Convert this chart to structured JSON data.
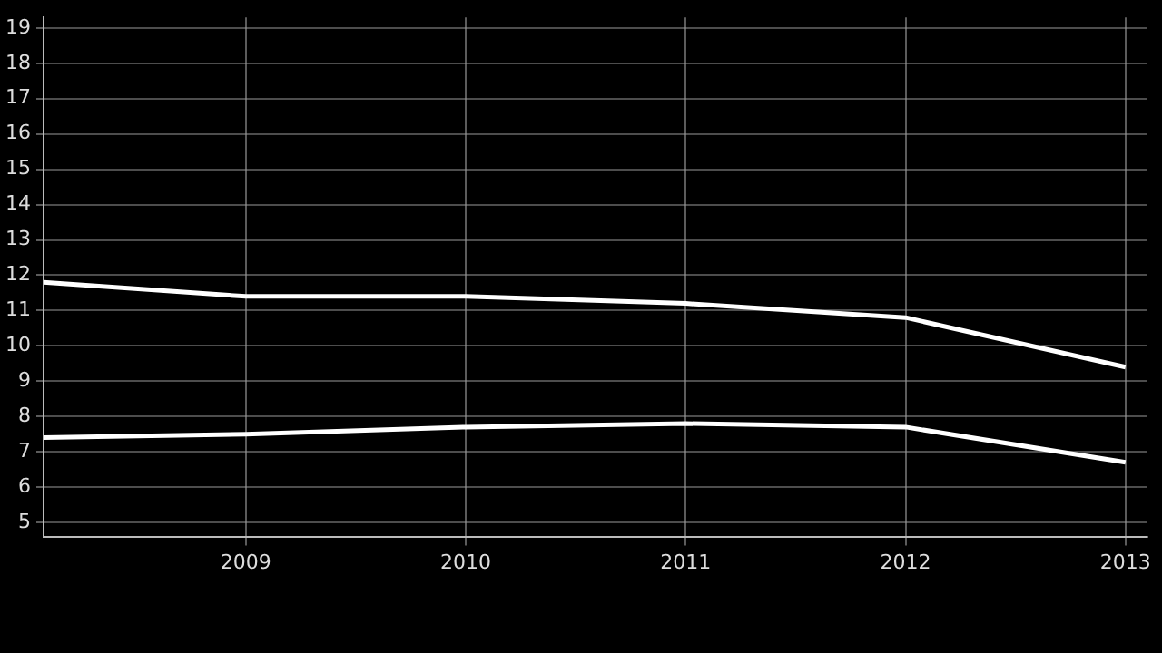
{
  "chart_data": {
    "type": "line",
    "x": [
      2008.08,
      2009,
      2010,
      2011,
      2012,
      2013
    ],
    "series": [
      {
        "color": "#ffffff",
        "values": [
          11.8,
          11.4,
          11.4,
          11.2,
          10.8,
          9.4
        ]
      },
      {
        "color": "#ffffff",
        "values": [
          7.4,
          7.5,
          7.7,
          7.8,
          7.7,
          6.7
        ]
      }
    ],
    "xlim": [
      2008.08,
      2013.1
    ],
    "xticks": [
      2009,
      2010,
      2011,
      2012,
      2013
    ],
    "ylim": [
      4.6,
      19.3
    ],
    "yticks": [
      5,
      6,
      7,
      8,
      9,
      10,
      11,
      12,
      13,
      14,
      15,
      16,
      17,
      18,
      19
    ],
    "grid": true,
    "marker": "none",
    "line_style": "solid"
  }
}
